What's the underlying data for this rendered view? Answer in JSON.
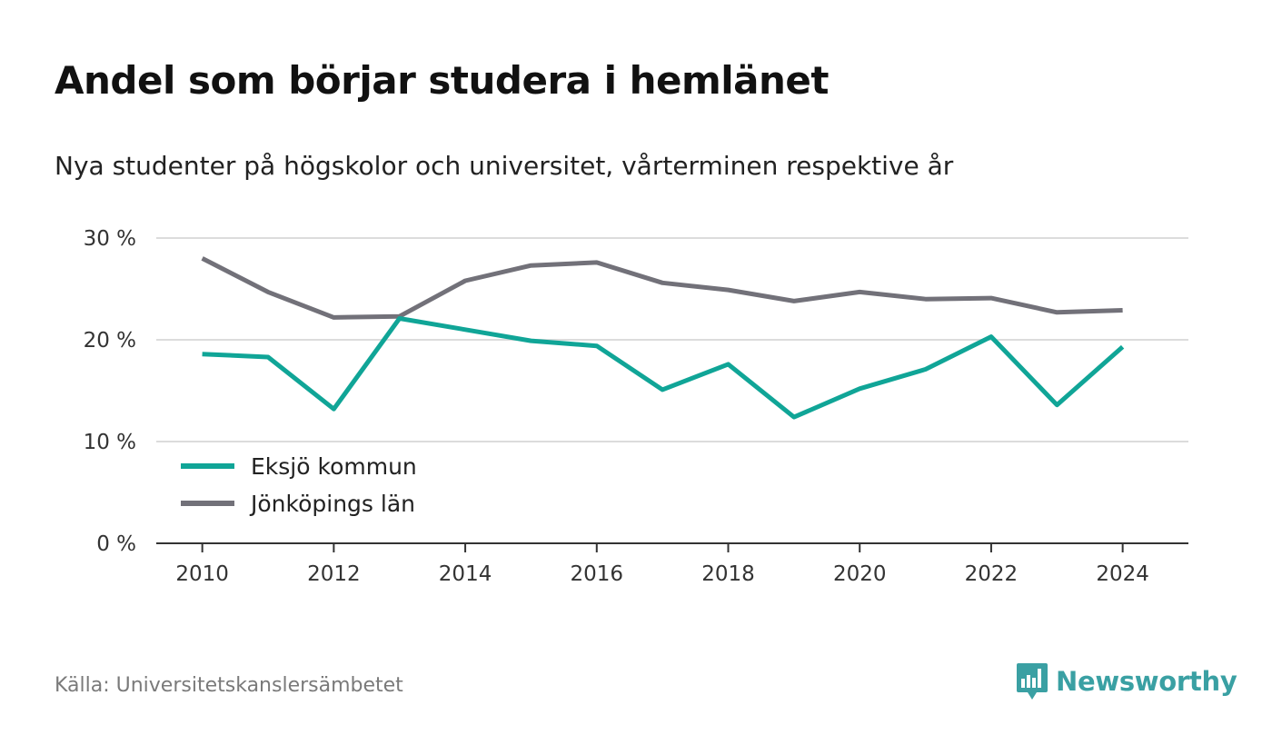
{
  "title": "Andel som börjar studera i hemlänet",
  "subtitle": "Nya studenter på högskolor och universitet, vårterminen respektive år",
  "source": "Källa: Universitetskanslersämbetet",
  "brand": {
    "name": "Newsworthy",
    "icon": "newsworthy-logo-icon",
    "color": "#3aa0a3"
  },
  "chart_data": {
    "type": "line",
    "title": "Andel som börjar studera i hemlänet",
    "subtitle": "Nya studenter på högskolor och universitet, vårterminen respektive år",
    "xlabel": "",
    "ylabel": "",
    "x": [
      2010,
      2011,
      2012,
      2013,
      2014,
      2015,
      2016,
      2017,
      2018,
      2019,
      2020,
      2021,
      2022,
      2023,
      2024
    ],
    "xlim": [
      2009.3,
      2025.0
    ],
    "xticks": [
      2010,
      2012,
      2014,
      2016,
      2018,
      2020,
      2022,
      2024
    ],
    "xtick_labels": [
      "2010",
      "2012",
      "2014",
      "2016",
      "2018",
      "2020",
      "2022",
      "2024"
    ],
    "ylim": [
      0,
      30
    ],
    "yticks": [
      0,
      10,
      20,
      30
    ],
    "ytick_labels": [
      "0 %",
      "10 %",
      "20 %",
      "30 %"
    ],
    "grid": "horizontal",
    "legend_position": "bottom-left",
    "series": [
      {
        "name": "Eksjö kommun",
        "color": "#10a597",
        "values": [
          18.6,
          18.3,
          13.2,
          22.1,
          21.0,
          19.9,
          19.4,
          15.1,
          17.6,
          12.4,
          15.2,
          17.1,
          20.3,
          13.6,
          19.3
        ]
      },
      {
        "name": "Jönköpings län",
        "color": "#727179",
        "values": [
          28.0,
          24.7,
          22.2,
          22.3,
          25.8,
          27.3,
          27.6,
          25.6,
          24.9,
          23.8,
          24.7,
          24.0,
          24.1,
          22.7,
          22.9
        ]
      }
    ]
  }
}
